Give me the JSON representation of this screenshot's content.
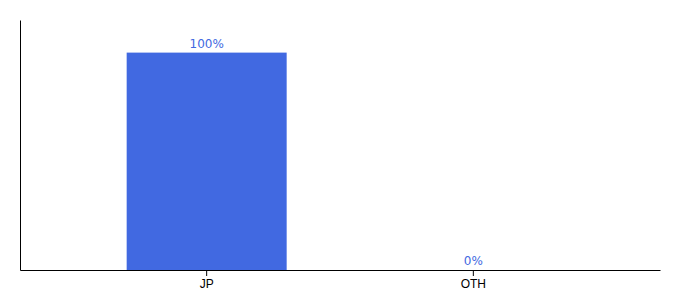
{
  "chart_data": {
    "type": "bar",
    "categories": [
      "JP",
      "OTH"
    ],
    "values": [
      100,
      0
    ],
    "value_labels": [
      "100%",
      "0%"
    ],
    "data_labels": true,
    "color": "#4169e1",
    "ylim": [
      0,
      115
    ],
    "tick_labels": "x",
    "grid": false
  }
}
